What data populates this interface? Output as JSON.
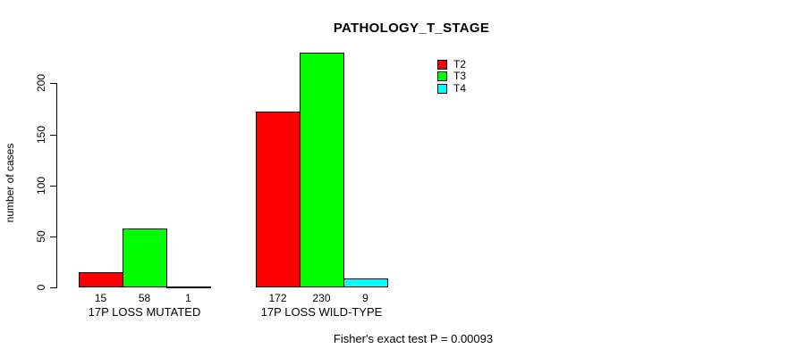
{
  "page": {
    "background": "#ffffff",
    "text_color": "#000000"
  },
  "chart_data": {
    "type": "bar",
    "title": "PATHOLOGY_T_STAGE",
    "ylabel": "number of cases",
    "xlabel": "",
    "footer": "Fisher's exact test P = 0.00093",
    "categories": [
      "17P LOSS MUTATED",
      "17P LOSS WILD-TYPE"
    ],
    "series": [
      {
        "name": "T2",
        "color": "#ff0000",
        "values": [
          15,
          172
        ]
      },
      {
        "name": "T3",
        "color": "#00ff00",
        "values": [
          58,
          230
        ]
      },
      {
        "name": "T4",
        "color": "#00ffff",
        "values": [
          1,
          9
        ]
      }
    ],
    "bar_value_labels_shown": true,
    "yticks": [
      0,
      50,
      100,
      150,
      200
    ],
    "ylim": [
      0,
      232
    ],
    "grid": false,
    "legend_position": "top-right"
  }
}
